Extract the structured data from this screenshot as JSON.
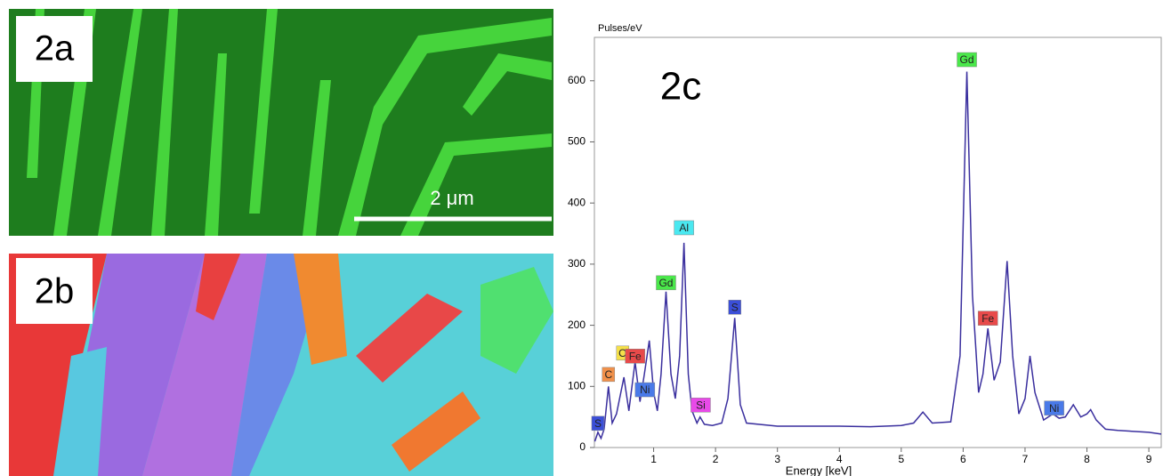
{
  "panels": [
    {
      "label": "2a",
      "scale_bar": "2 μm"
    },
    {
      "label": "2b"
    }
  ],
  "chart_data": {
    "type": "line",
    "label": "2c",
    "y_axis_label": "Pulses/eV",
    "x_axis_label": "Energy [keV]",
    "xlim": [
      0,
      9.2
    ],
    "ylim": [
      0,
      671
    ],
    "xticks": [
      1,
      2,
      3,
      4,
      5,
      6,
      7,
      8,
      9
    ],
    "yticks": [
      0,
      100,
      200,
      300,
      400,
      500,
      600
    ],
    "x": [
      0.05,
      0.1,
      0.15,
      0.2,
      0.27,
      0.33,
      0.4,
      0.52,
      0.6,
      0.7,
      0.78,
      0.85,
      0.93,
      1.0,
      1.06,
      1.12,
      1.2,
      1.28,
      1.35,
      1.42,
      1.49,
      1.56,
      1.62,
      1.7,
      1.75,
      1.82,
      1.95,
      2.1,
      2.2,
      2.31,
      2.4,
      2.5,
      3.0,
      3.5,
      4.0,
      4.5,
      5.0,
      5.2,
      5.35,
      5.5,
      5.8,
      5.95,
      6.06,
      6.15,
      6.25,
      6.32,
      6.4,
      6.5,
      6.6,
      6.71,
      6.8,
      6.9,
      7.0,
      7.08,
      7.16,
      7.3,
      7.45,
      7.55,
      7.65,
      7.78,
      7.9,
      8.0,
      8.06,
      8.15,
      8.3,
      8.5,
      9.0,
      9.2
    ],
    "series": [
      {
        "color": "#3a2f9e",
        "values": [
          10,
          25,
          15,
          30,
          100,
          40,
          55,
          115,
          60,
          140,
          75,
          120,
          175,
          90,
          60,
          120,
          255,
          120,
          80,
          150,
          335,
          120,
          60,
          40,
          50,
          38,
          36,
          40,
          80,
          212,
          70,
          40,
          35,
          35,
          35,
          34,
          36,
          40,
          58,
          40,
          42,
          150,
          615,
          250,
          90,
          120,
          195,
          110,
          140,
          305,
          150,
          55,
          80,
          150,
          90,
          45,
          55,
          48,
          50,
          70,
          50,
          55,
          62,
          45,
          30,
          28,
          25,
          22
        ]
      }
    ],
    "annotations": [
      {
        "text": "S",
        "x": 0.1,
        "y": 25,
        "color": "#3b4fd8"
      },
      {
        "text": "C",
        "x": 0.27,
        "y": 105,
        "color": "#f0904a"
      },
      {
        "text": "O",
        "x": 0.5,
        "y": 140,
        "color": "#f5e04a"
      },
      {
        "text": "Fe",
        "x": 0.7,
        "y": 135,
        "color": "#e84a4a"
      },
      {
        "text": "Ni",
        "x": 0.86,
        "y": 80,
        "color": "#4a7ae8"
      },
      {
        "text": "Gd",
        "x": 1.2,
        "y": 255,
        "color": "#4ae84a"
      },
      {
        "text": "Al",
        "x": 1.49,
        "y": 345,
        "color": "#4ae8f0"
      },
      {
        "text": "Si",
        "x": 1.76,
        "y": 55,
        "color": "#e84ae8"
      },
      {
        "text": "S",
        "x": 2.31,
        "y": 215,
        "color": "#3b4fd8"
      },
      {
        "text": "Gd",
        "x": 6.06,
        "y": 620,
        "color": "#4ae84a"
      },
      {
        "text": "Fe",
        "x": 6.4,
        "y": 197,
        "color": "#e84a4a"
      },
      {
        "text": "Ni",
        "x": 7.47,
        "y": 50,
        "color": "#4a7ae8"
      }
    ]
  }
}
